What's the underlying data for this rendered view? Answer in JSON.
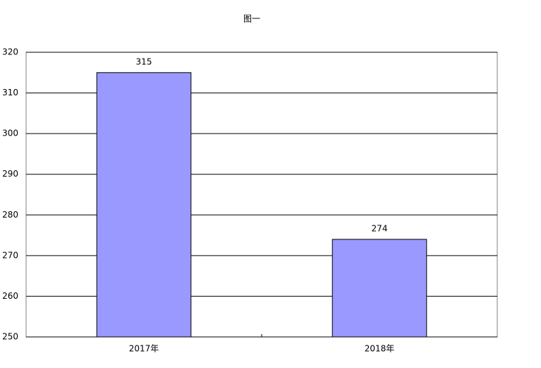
{
  "chart_data": {
    "type": "bar",
    "title": "图一",
    "categories": [
      "2017年",
      "2018年"
    ],
    "values": [
      315,
      274
    ],
    "color": "#9999ff",
    "ylim": [
      250,
      320
    ],
    "yticks": [
      250,
      260,
      270,
      280,
      290,
      300,
      310,
      320
    ],
    "grid": true
  }
}
